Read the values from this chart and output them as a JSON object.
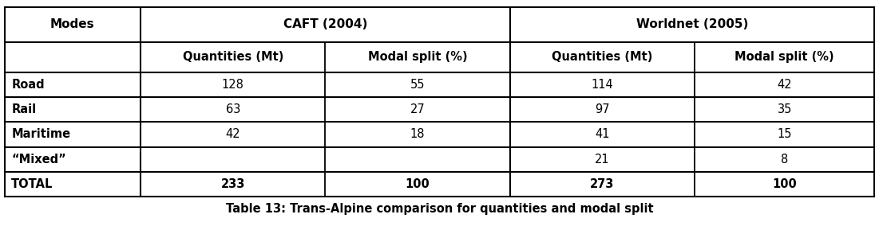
{
  "title": "Table 13: Trans-Alpine comparison for quantities and modal split",
  "header_row1": [
    "Modes",
    "CAFT (2004)",
    "Worldnet (2005)"
  ],
  "header_row2": [
    "Quantities (Mt)",
    "Modal split (%)",
    "Quantities (Mt)",
    "Modal split (%)"
  ],
  "rows": [
    [
      "Road",
      "128",
      "55",
      "114",
      "42"
    ],
    [
      "Rail",
      "63",
      "27",
      "97",
      "35"
    ],
    [
      "Maritime",
      "42",
      "18",
      "41",
      "15"
    ],
    [
      "“Mixed”",
      "",
      "",
      "21",
      "8"
    ],
    [
      "TOTAL",
      "233",
      "100",
      "273",
      "100"
    ]
  ],
  "background_color": "#ffffff",
  "line_color": "#000000",
  "text_color": "#000000",
  "figwidth": 11.01,
  "figheight": 2.84,
  "dpi": 100
}
